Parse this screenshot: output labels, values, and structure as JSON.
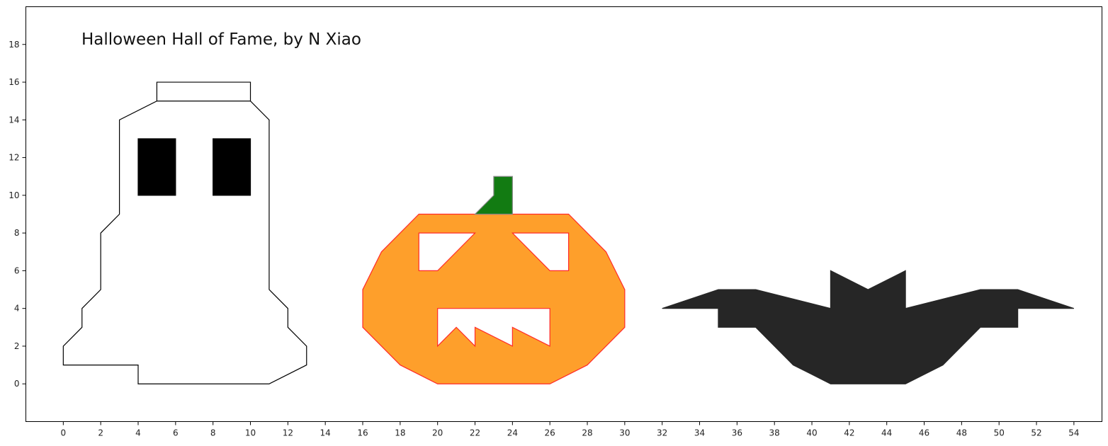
{
  "chart_data": {
    "type": "polygon-plot",
    "title": "Halloween Hall of Fame, by N Xiao",
    "xlim": [
      -2,
      55.5
    ],
    "ylim": [
      -2,
      20
    ],
    "xticks": [
      0,
      2,
      4,
      6,
      8,
      10,
      12,
      14,
      16,
      18,
      20,
      22,
      24,
      26,
      28,
      30,
      32,
      34,
      36,
      38,
      40,
      42,
      44,
      46,
      48,
      50,
      52,
      54
    ],
    "yticks": [
      0,
      2,
      4,
      6,
      8,
      10,
      12,
      14,
      16,
      18
    ],
    "xlabel": "",
    "ylabel": "",
    "grid": false,
    "shapes": [
      {
        "name": "ghost-body",
        "fill": "#ffffff",
        "stroke": "#000000",
        "points": [
          [
            0,
            1
          ],
          [
            0,
            2
          ],
          [
            1,
            3
          ],
          [
            1,
            4
          ],
          [
            2,
            5
          ],
          [
            2,
            8
          ],
          [
            3,
            9
          ],
          [
            3,
            14
          ],
          [
            5,
            15
          ],
          [
            10,
            15
          ],
          [
            11,
            14
          ],
          [
            11,
            5
          ],
          [
            12,
            4
          ],
          [
            12,
            3
          ],
          [
            13,
            2
          ],
          [
            13,
            1
          ],
          [
            11,
            0
          ],
          [
            4,
            0
          ],
          [
            4,
            1
          ]
        ]
      },
      {
        "name": "ghost-hat",
        "fill": "#ffffff",
        "stroke": "#000000",
        "points": [
          [
            5,
            15
          ],
          [
            5,
            16
          ],
          [
            10,
            16
          ],
          [
            10,
            15
          ]
        ]
      },
      {
        "name": "ghost-left-eye",
        "fill": "#000000",
        "stroke": "#000000",
        "points": [
          [
            4,
            10
          ],
          [
            4,
            13
          ],
          [
            6,
            13
          ],
          [
            6,
            10
          ]
        ]
      },
      {
        "name": "ghost-right-eye",
        "fill": "#000000",
        "stroke": "#000000",
        "points": [
          [
            8,
            10
          ],
          [
            8,
            13
          ],
          [
            10,
            13
          ],
          [
            10,
            10
          ]
        ]
      },
      {
        "name": "pumpkin-body",
        "fill": "#fe9f2b",
        "stroke": "#ff2a2a",
        "points": [
          [
            16,
            5
          ],
          [
            17,
            7
          ],
          [
            19,
            9
          ],
          [
            27,
            9
          ],
          [
            29,
            7
          ],
          [
            30,
            5
          ],
          [
            30,
            3
          ],
          [
            28,
            1
          ],
          [
            26,
            0
          ],
          [
            20,
            0
          ],
          [
            18,
            1
          ],
          [
            16,
            3
          ]
        ]
      },
      {
        "name": "pumpkin-left-eye",
        "fill": "#ffffff",
        "stroke": "#ff2a2a",
        "points": [
          [
            19,
            8
          ],
          [
            22,
            8
          ],
          [
            20,
            6
          ],
          [
            19,
            6
          ]
        ]
      },
      {
        "name": "pumpkin-right-eye",
        "fill": "#ffffff",
        "stroke": "#ff2a2a",
        "points": [
          [
            24,
            8
          ],
          [
            27,
            8
          ],
          [
            27,
            6
          ],
          [
            26,
            6
          ]
        ]
      },
      {
        "name": "pumpkin-mouth",
        "fill": "#ffffff",
        "stroke": "#ff2a2a",
        "points": [
          [
            20,
            4
          ],
          [
            26,
            4
          ],
          [
            26,
            2
          ],
          [
            24,
            3
          ],
          [
            24,
            2
          ],
          [
            22,
            3
          ],
          [
            22,
            2
          ],
          [
            21,
            3
          ],
          [
            20,
            2
          ]
        ]
      },
      {
        "name": "pumpkin-stem",
        "fill": "#127b12",
        "stroke": "#888888",
        "points": [
          [
            22,
            9
          ],
          [
            23,
            10
          ],
          [
            23,
            11
          ],
          [
            24,
            11
          ],
          [
            24,
            9
          ]
        ]
      },
      {
        "name": "bat",
        "fill": "#262626",
        "stroke": "#262626",
        "points": [
          [
            32,
            4
          ],
          [
            35,
            5
          ],
          [
            37,
            5
          ],
          [
            41,
            4
          ],
          [
            41,
            6
          ],
          [
            43,
            5
          ],
          [
            45,
            6
          ],
          [
            45,
            4
          ],
          [
            49,
            5
          ],
          [
            51,
            5
          ],
          [
            54,
            4
          ],
          [
            51,
            4
          ],
          [
            51,
            3
          ],
          [
            49,
            3
          ],
          [
            47,
            1
          ],
          [
            45,
            0
          ],
          [
            41,
            0
          ],
          [
            39,
            1
          ],
          [
            37,
            3
          ],
          [
            35,
            3
          ],
          [
            35,
            4
          ]
        ]
      }
    ]
  }
}
